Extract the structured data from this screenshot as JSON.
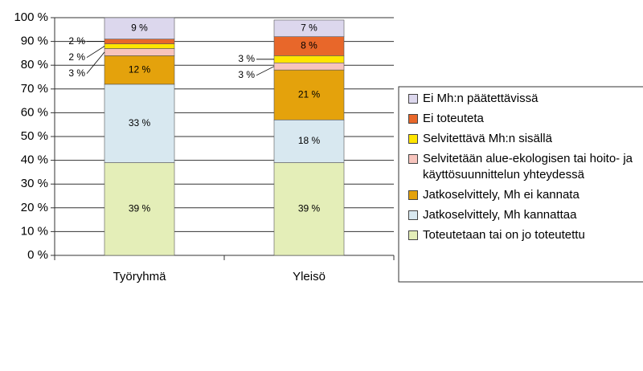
{
  "chart_data": {
    "type": "stacked_bar",
    "categories": [
      "Työryhmä",
      "Yleisö"
    ],
    "series": [
      {
        "name": "Toteutetaan tai on jo toteutettu",
        "color": "#e4eeb8",
        "values": [
          39,
          39
        ],
        "value_labels": [
          "39 %",
          "39 %"
        ]
      },
      {
        "name": "Jatkoselvittely, Mh kannattaa",
        "color": "#d8e8f0",
        "values": [
          33,
          18
        ],
        "value_labels": [
          "33 %",
          "18 %"
        ]
      },
      {
        "name": "Jatkoselvittely, Mh ei kannata",
        "color": "#e4a20c",
        "values": [
          12,
          21
        ],
        "value_labels": [
          "12 %",
          "21 %"
        ]
      },
      {
        "name": "Selvitetään alue-ekologisen tai hoito- ja käyttösuunnittelun yhteydessä",
        "color": "#f7c4bd",
        "values": [
          3,
          3
        ],
        "value_labels": [
          "3 %",
          "3 %"
        ]
      },
      {
        "name": "Selvitettävä Mh:n sisällä",
        "color": "#ffe500",
        "values": [
          2,
          3
        ],
        "value_labels": [
          "2 %",
          "3 %"
        ]
      },
      {
        "name": "Ei toteuteta",
        "color": "#e8672a",
        "values": [
          2,
          8
        ],
        "value_labels": [
          "2 %",
          "8 %"
        ]
      },
      {
        "name": "Ei Mh:n päätettävissä",
        "color": "#dcd7ed",
        "values": [
          9,
          7
        ],
        "value_labels": [
          "9 %",
          "7 %"
        ]
      }
    ],
    "ylim": [
      0,
      100
    ],
    "yticks": [
      {
        "value": 0,
        "label": "0 %"
      },
      {
        "value": 10,
        "label": "10 %"
      },
      {
        "value": 20,
        "label": "20 %"
      },
      {
        "value": 30,
        "label": "30 %"
      },
      {
        "value": 40,
        "label": "40 %"
      },
      {
        "value": 50,
        "label": "50 %"
      },
      {
        "value": 60,
        "label": "60 %"
      },
      {
        "value": 70,
        "label": "70 %"
      },
      {
        "value": 80,
        "label": "80 %"
      },
      {
        "value": 90,
        "label": "90 %"
      },
      {
        "value": 100,
        "label": "100 %"
      }
    ],
    "grid": true,
    "legend": "right"
  }
}
